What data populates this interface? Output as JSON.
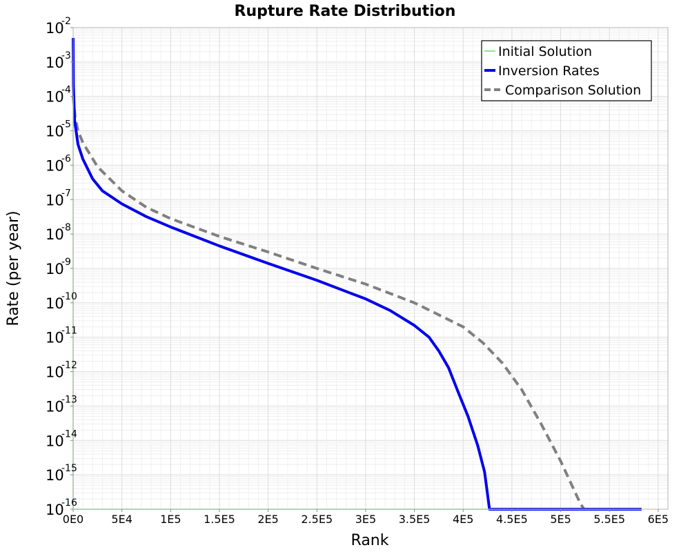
{
  "chart_data": {
    "type": "line",
    "title": "Rupture Rate Distribution",
    "xlabel": "Rank",
    "ylabel": "Rate (per year)",
    "x_scale": "linear",
    "y_scale": "log",
    "xlim": [
      0,
      610000
    ],
    "ylim": [
      1e-16,
      0.01
    ],
    "grid": true,
    "legend_position": "top-right",
    "x_ticks": [
      {
        "value": 0,
        "label": "0E0"
      },
      {
        "value": 50000,
        "label": "5E4"
      },
      {
        "value": 100000,
        "label": "1E5"
      },
      {
        "value": 150000,
        "label": "1.5E5"
      },
      {
        "value": 200000,
        "label": "2E5"
      },
      {
        "value": 250000,
        "label": "2.5E5"
      },
      {
        "value": 300000,
        "label": "3E5"
      },
      {
        "value": 350000,
        "label": "3.5E5"
      },
      {
        "value": 400000,
        "label": "4E5"
      },
      {
        "value": 450000,
        "label": "4.5E5"
      },
      {
        "value": 500000,
        "label": "5E5"
      },
      {
        "value": 550000,
        "label": "5.5E5"
      },
      {
        "value": 600000,
        "label": "6E5"
      }
    ],
    "y_ticks": [
      {
        "exponent": -2,
        "base": "10",
        "sup": "-2"
      },
      {
        "exponent": -3,
        "base": "10",
        "sup": "-3"
      },
      {
        "exponent": -4,
        "base": "10",
        "sup": "-4"
      },
      {
        "exponent": -5,
        "base": "10",
        "sup": "-5"
      },
      {
        "exponent": -6,
        "base": "10",
        "sup": "-6"
      },
      {
        "exponent": -7,
        "base": "10",
        "sup": "-7"
      },
      {
        "exponent": -8,
        "base": "10",
        "sup": "-8"
      },
      {
        "exponent": -9,
        "base": "10",
        "sup": "-9"
      },
      {
        "exponent": -10,
        "base": "10",
        "sup": "-10"
      },
      {
        "exponent": -11,
        "base": "10",
        "sup": "-11"
      },
      {
        "exponent": -12,
        "base": "10",
        "sup": "-12"
      },
      {
        "exponent": -13,
        "base": "10",
        "sup": "-13"
      },
      {
        "exponent": -14,
        "base": "10",
        "sup": "-14"
      },
      {
        "exponent": -15,
        "base": "10",
        "sup": "-15"
      },
      {
        "exponent": -16,
        "base": "10",
        "sup": "-16"
      }
    ],
    "series": [
      {
        "name": "Initial Solution",
        "color": "#66dd66",
        "style": "solid-thin",
        "points": [
          [
            0,
            1e-16
          ],
          [
            0,
            0.0001
          ],
          [
            0,
            1e-16
          ],
          [
            583000,
            1e-16
          ]
        ]
      },
      {
        "name": "Inversion Rates",
        "color": "#0000ee",
        "style": "solid-thick",
        "points": [
          [
            0,
            0.005
          ],
          [
            300,
            0.0002
          ],
          [
            1500,
            2e-05
          ],
          [
            5000,
            4e-06
          ],
          [
            10000,
            1.5e-06
          ],
          [
            20000,
            4e-07
          ],
          [
            30000,
            1.8e-07
          ],
          [
            50000,
            7.5e-08
          ],
          [
            75000,
            3.2e-08
          ],
          [
            100000,
            1.6e-08
          ],
          [
            150000,
            4.5e-09
          ],
          [
            200000,
            1.4e-09
          ],
          [
            250000,
            4.5e-10
          ],
          [
            300000,
            1.3e-10
          ],
          [
            325000,
            6e-11
          ],
          [
            350000,
            2.2e-11
          ],
          [
            365000,
            1e-11
          ],
          [
            375000,
            4e-12
          ],
          [
            385000,
            1.3e-12
          ],
          [
            395000,
            2.5e-13
          ],
          [
            405000,
            5e-14
          ],
          [
            415000,
            7e-15
          ],
          [
            422000,
            1.2e-15
          ],
          [
            427000,
            1e-16
          ],
          [
            583000,
            1e-16
          ]
        ]
      },
      {
        "name": "Comparison Solution",
        "color": "#808080",
        "style": "dashed-thick",
        "points": [
          [
            0,
            0.0001
          ],
          [
            2000,
            2.5e-05
          ],
          [
            5000,
            1e-05
          ],
          [
            10000,
            4.5e-06
          ],
          [
            25000,
            9e-07
          ],
          [
            50000,
            1.8e-07
          ],
          [
            75000,
            6e-08
          ],
          [
            100000,
            2.8e-08
          ],
          [
            150000,
            8.5e-09
          ],
          [
            200000,
            3e-09
          ],
          [
            250000,
            1e-09
          ],
          [
            300000,
            3.5e-10
          ],
          [
            350000,
            1e-10
          ],
          [
            400000,
            2e-11
          ],
          [
            420000,
            7e-12
          ],
          [
            440000,
            1.8e-12
          ],
          [
            460000,
            3e-13
          ],
          [
            480000,
            3e-14
          ],
          [
            500000,
            2.5e-15
          ],
          [
            520000,
            1.5e-16
          ],
          [
            524000,
            1e-16
          ]
        ]
      }
    ]
  }
}
